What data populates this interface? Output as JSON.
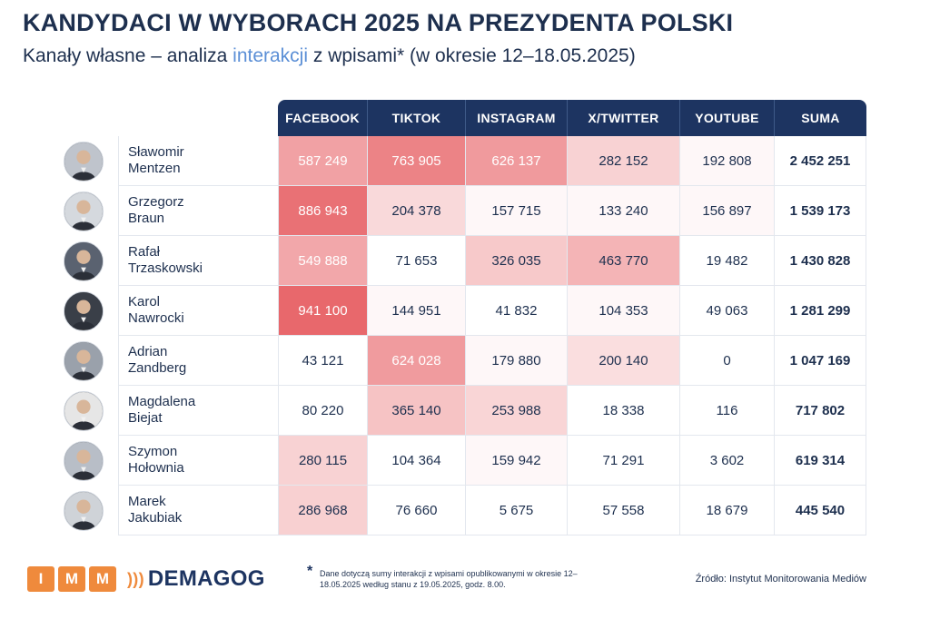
{
  "title": "KANDYDACI W WYBORACH 2025 NA PREZYDENTA POLSKI",
  "subtitle": {
    "before": "Kanały własne – analiza ",
    "highlight": "interakcji",
    "after": " z wpisami* (w okresie 12–18.05.2025)"
  },
  "colors": {
    "header_bg": "#1d3461",
    "highlight_text": "#5b8fd6",
    "heat_max": "#e8686c",
    "accent_orange": "#ef8a3c"
  },
  "columns": [
    "FACEBOOK",
    "TIKTOK",
    "INSTAGRAM",
    "X/TWITTER",
    "YOUTUBE",
    "SUMA"
  ],
  "rows": [
    {
      "first": "Sławomir",
      "last": "Mentzen",
      "values": [
        "587 249",
        "763 905",
        "626 137",
        "282 152",
        "192 808"
      ],
      "sum": "2 452 251",
      "heat": [
        0.62,
        0.82,
        0.67,
        0.3,
        0.05
      ]
    },
    {
      "first": "Grzegorz",
      "last": "Braun",
      "values": [
        "886 943",
        "204 378",
        "157 715",
        "133 240",
        "156 897"
      ],
      "sum": "1 539 173",
      "heat": [
        0.94,
        0.25,
        0.05,
        0.05,
        0.05
      ]
    },
    {
      "first": "Rafał",
      "last": "Trzaskowski",
      "values": [
        "549 888",
        "71 653",
        "326 035",
        "463 770",
        "19 482"
      ],
      "sum": "1 430 828",
      "heat": [
        0.58,
        0.0,
        0.36,
        0.5,
        0.0
      ]
    },
    {
      "first": "Karol",
      "last": "Nawrocki",
      "values": [
        "941 100",
        "144 951",
        "41 832",
        "104 353",
        "49 063"
      ],
      "sum": "1 281 299",
      "heat": [
        1.0,
        0.05,
        0.0,
        0.05,
        0.0
      ]
    },
    {
      "first": "Adrian",
      "last": "Zandberg",
      "values": [
        "43 121",
        "624 028",
        "179 880",
        "200 140",
        "0"
      ],
      "sum": "1 047 169",
      "heat": [
        0.0,
        0.66,
        0.05,
        0.22,
        0.0
      ]
    },
    {
      "first": "Magdalena",
      "last": "Biejat",
      "values": [
        "80 220",
        "365 140",
        "253 988",
        "18 338",
        "116"
      ],
      "sum": "717 802",
      "heat": [
        0.0,
        0.4,
        0.28,
        0.0,
        0.0
      ]
    },
    {
      "first": "Szymon",
      "last": "Hołownia",
      "values": [
        "280 115",
        "104 364",
        "159 942",
        "71 291",
        "3 602"
      ],
      "sum": "619 314",
      "heat": [
        0.3,
        0.0,
        0.05,
        0.0,
        0.0
      ]
    },
    {
      "first": "Marek",
      "last": "Jakubiak",
      "values": [
        "286 968",
        "76 660",
        "5 675",
        "57 558",
        "18 679"
      ],
      "sum": "445 540",
      "heat": [
        0.31,
        0.0,
        0.0,
        0.0,
        0.0
      ]
    }
  ],
  "footer": {
    "imm_letters": [
      "I",
      "M",
      "M"
    ],
    "demagog": "DEMAGOG",
    "footnote_star": "*",
    "footnote": "Dane dotyczą sumy interakcji z wpisami opublikowanymi w okresie 12–18.05.2025 według stanu z 19.05.2025, godz. 8.00.",
    "source": "Źródło: Instytut Monitorowania Mediów"
  }
}
